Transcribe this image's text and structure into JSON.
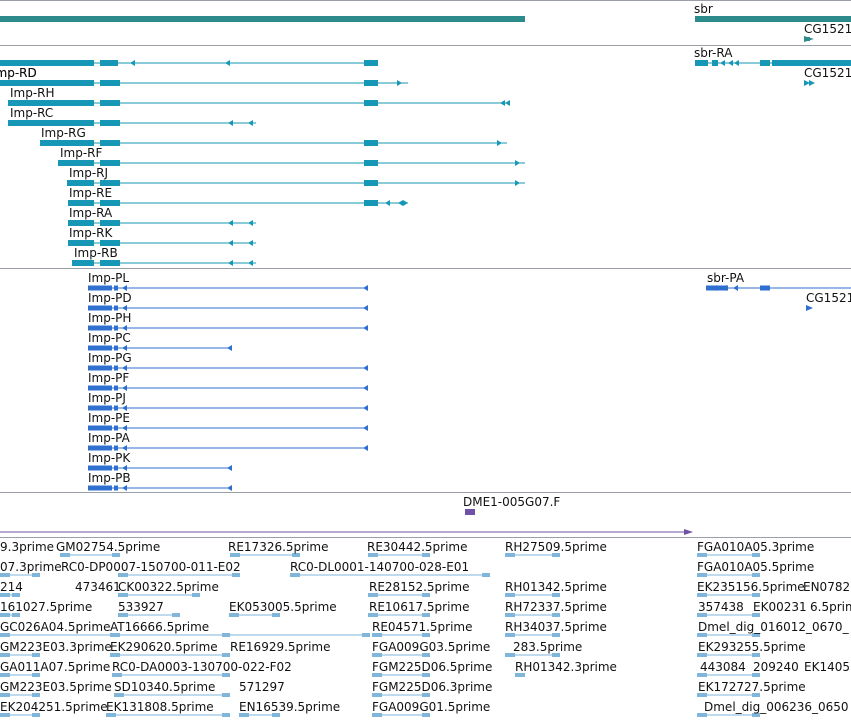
{
  "colors": {
    "gene": "#2e8b8b",
    "mrna": "#1597b5",
    "protein": "#2f6fcf",
    "clone": "#6f52a8",
    "est": "#7fb6da",
    "separator": "#9aa0a6"
  },
  "gene_track": {
    "labels": [
      "sbr",
      "CG1521"
    ]
  },
  "mrna_track": {
    "labels": [
      "Imp-RD",
      "Imp-RH",
      "Imp-RC",
      "Imp-RG",
      "Imp-RF",
      "Imp-RJ",
      "Imp-RE",
      "Imp-RA",
      "Imp-RK",
      "Imp-RB",
      "sbr-RA",
      "CG1521"
    ]
  },
  "protein_track": {
    "labels": [
      "Imp-PL",
      "Imp-PD",
      "Imp-PH",
      "Imp-PC",
      "Imp-PG",
      "Imp-PF",
      "Imp-PJ",
      "Imp-PE",
      "Imp-PA",
      "Imp-PK",
      "Imp-PB",
      "sbr-PA",
      "CG1521"
    ]
  },
  "clone_track": {
    "labels": [
      "DME1-005G07.F"
    ]
  },
  "est_track": {
    "labels": [
      "9.3prime",
      "GM02754.5prime",
      "RE17326.5prime",
      "RE30442.5prime",
      "RH27509.5prime",
      "FGA010A05.3prime",
      "07.3prime",
      "RC0-DP0007-150700-011-E02",
      "RC0-DL0001-140700-028-E01",
      "FGA010A05.5prime",
      "214",
      "473461",
      "CK00322.5prime",
      "RE28152.5prime",
      "RH01342.5prime",
      "EK235156.5prime",
      "EN0782",
      "161027.5prime",
      "533927",
      "EK053005.5prime",
      "RE10617.5prime",
      "RH72337.5prime",
      "357438",
      "EK00231",
      "6.5prime",
      "GC026A04.5prime",
      "AT16666.5prime",
      "RE04571.5prime",
      "RH34037.5prime",
      "Dmel_dig_016012_0670_",
      "GM223E03.3prime",
      "EK290620.5prime",
      "RE16929.5prime",
      "FGA009G03.5prime",
      "283.5prime",
      "EK293255.5prime",
      "GA011A07.5prime",
      "RC0-DA0003-130700-022-F02",
      "FGM225D06.5prime",
      "RH01342.3prime",
      "443084",
      "209240",
      "EK1405",
      "GM223E03.5prime",
      "SD10340.5prime",
      "571297",
      "FGM225D06.3prime",
      "EK172727.5prime",
      "EK204251.5prime",
      "EK131808.5prime",
      "EN16539.5prime",
      "FGA009G01.5prime",
      "Dmel_dig_006236_0650"
    ]
  }
}
